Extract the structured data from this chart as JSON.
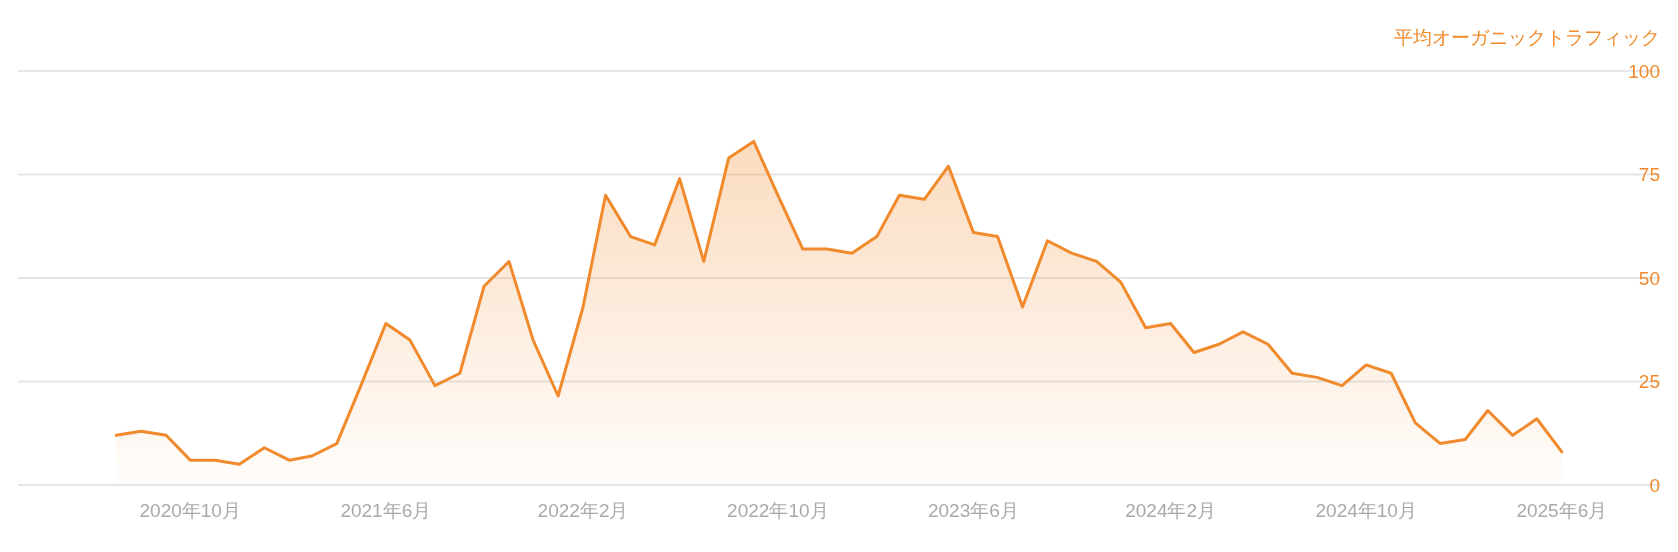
{
  "chart_data": {
    "type": "area",
    "ylabel": "平均オーガニックトラフィック",
    "x": [
      "2020-07",
      "2020-08",
      "2020-09",
      "2020-10",
      "2020-11",
      "2020-12",
      "2021-01",
      "2021-02",
      "2021-03",
      "2021-04",
      "2021-05",
      "2021-06",
      "2021-07",
      "2021-08",
      "2021-09",
      "2021-10",
      "2021-11",
      "2021-12",
      "2022-01",
      "2022-02",
      "2022-03",
      "2022-04",
      "2022-05",
      "2022-06",
      "2022-07",
      "2022-08",
      "2022-09",
      "2022-10",
      "2022-11",
      "2022-12",
      "2023-01",
      "2023-02",
      "2023-03",
      "2023-04",
      "2023-05",
      "2023-06",
      "2023-07",
      "2023-08",
      "2023-09",
      "2023-10",
      "2023-11",
      "2023-12",
      "2024-01",
      "2024-02",
      "2024-03",
      "2024-04",
      "2024-05",
      "2024-06",
      "2024-07",
      "2024-08",
      "2024-09",
      "2024-10",
      "2024-11",
      "2024-12",
      "2025-01",
      "2025-02",
      "2025-03",
      "2025-04",
      "2025-05",
      "2025-06"
    ],
    "series": [
      {
        "color": "#f08a2c",
        "values": [
          12,
          13,
          12,
          6,
          6,
          5,
          9,
          6,
          7,
          10,
          24,
          39,
          35,
          24,
          27,
          48,
          54,
          35,
          21.5,
          43,
          70,
          60,
          58,
          74,
          54,
          79,
          83,
          70,
          57,
          57,
          56,
          60,
          70,
          69,
          77,
          61,
          60,
          43,
          59,
          56,
          54,
          49,
          38,
          39,
          32,
          34,
          37,
          34,
          27,
          26,
          24,
          29,
          27,
          15,
          10,
          11,
          18,
          12,
          16,
          8
        ]
      }
    ],
    "xlim": [
      "2020-03",
      "2025-10"
    ],
    "xticks": [
      {
        "value": "2020-10",
        "label": "2020年10月"
      },
      {
        "value": "2021-06",
        "label": "2021年6月"
      },
      {
        "value": "2022-02",
        "label": "2022年2月"
      },
      {
        "value": "2022-10",
        "label": "2022年10月"
      },
      {
        "value": "2023-06",
        "label": "2023年6月"
      },
      {
        "value": "2024-02",
        "label": "2024年2月"
      },
      {
        "value": "2024-10",
        "label": "2024年10月"
      },
      {
        "value": "2025-06",
        "label": "2025年6月"
      }
    ],
    "ylim": [
      0,
      100
    ],
    "yticks": [
      0,
      25,
      50,
      75,
      100
    ],
    "grid": "y"
  }
}
